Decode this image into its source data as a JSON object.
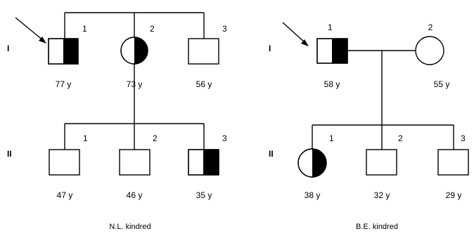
{
  "kindreds": [
    {
      "caption": "N.L. kindred",
      "generations": [
        "I",
        "II"
      ],
      "individuals": [
        {
          "id": "I-1",
          "number": "1",
          "age": "77 y",
          "sex": "male",
          "status": "half-affected",
          "proband": true
        },
        {
          "id": "I-2",
          "number": "2",
          "age": "73 y",
          "sex": "female",
          "status": "half-affected",
          "proband": false
        },
        {
          "id": "I-3",
          "number": "3",
          "age": "56 y",
          "sex": "male",
          "status": "unaffected",
          "proband": false
        },
        {
          "id": "II-1",
          "number": "1",
          "age": "47 y",
          "sex": "male",
          "status": "unaffected",
          "proband": false
        },
        {
          "id": "II-2",
          "number": "2",
          "age": "46 y",
          "sex": "male",
          "status": "unaffected",
          "proband": false
        },
        {
          "id": "II-3",
          "number": "3",
          "age": "35 y",
          "sex": "male",
          "status": "half-affected",
          "proband": false
        }
      ]
    },
    {
      "caption": "B.E. kindred",
      "generations": [
        "I",
        "II"
      ],
      "individuals": [
        {
          "id": "I-1",
          "number": "1",
          "age": "58 y",
          "sex": "male",
          "status": "half-affected",
          "proband": true
        },
        {
          "id": "I-2",
          "number": "2",
          "age": "55 y",
          "sex": "female",
          "status": "unaffected",
          "proband": false
        },
        {
          "id": "II-1",
          "number": "1",
          "age": "38 y",
          "sex": "female",
          "status": "half-affected",
          "proband": false
        },
        {
          "id": "II-2",
          "number": "2",
          "age": "32 y",
          "sex": "male",
          "status": "unaffected",
          "proband": false
        },
        {
          "id": "II-3",
          "number": "3",
          "age": "29 y",
          "sex": "male",
          "status": "unaffected",
          "proband": false
        }
      ]
    }
  ]
}
